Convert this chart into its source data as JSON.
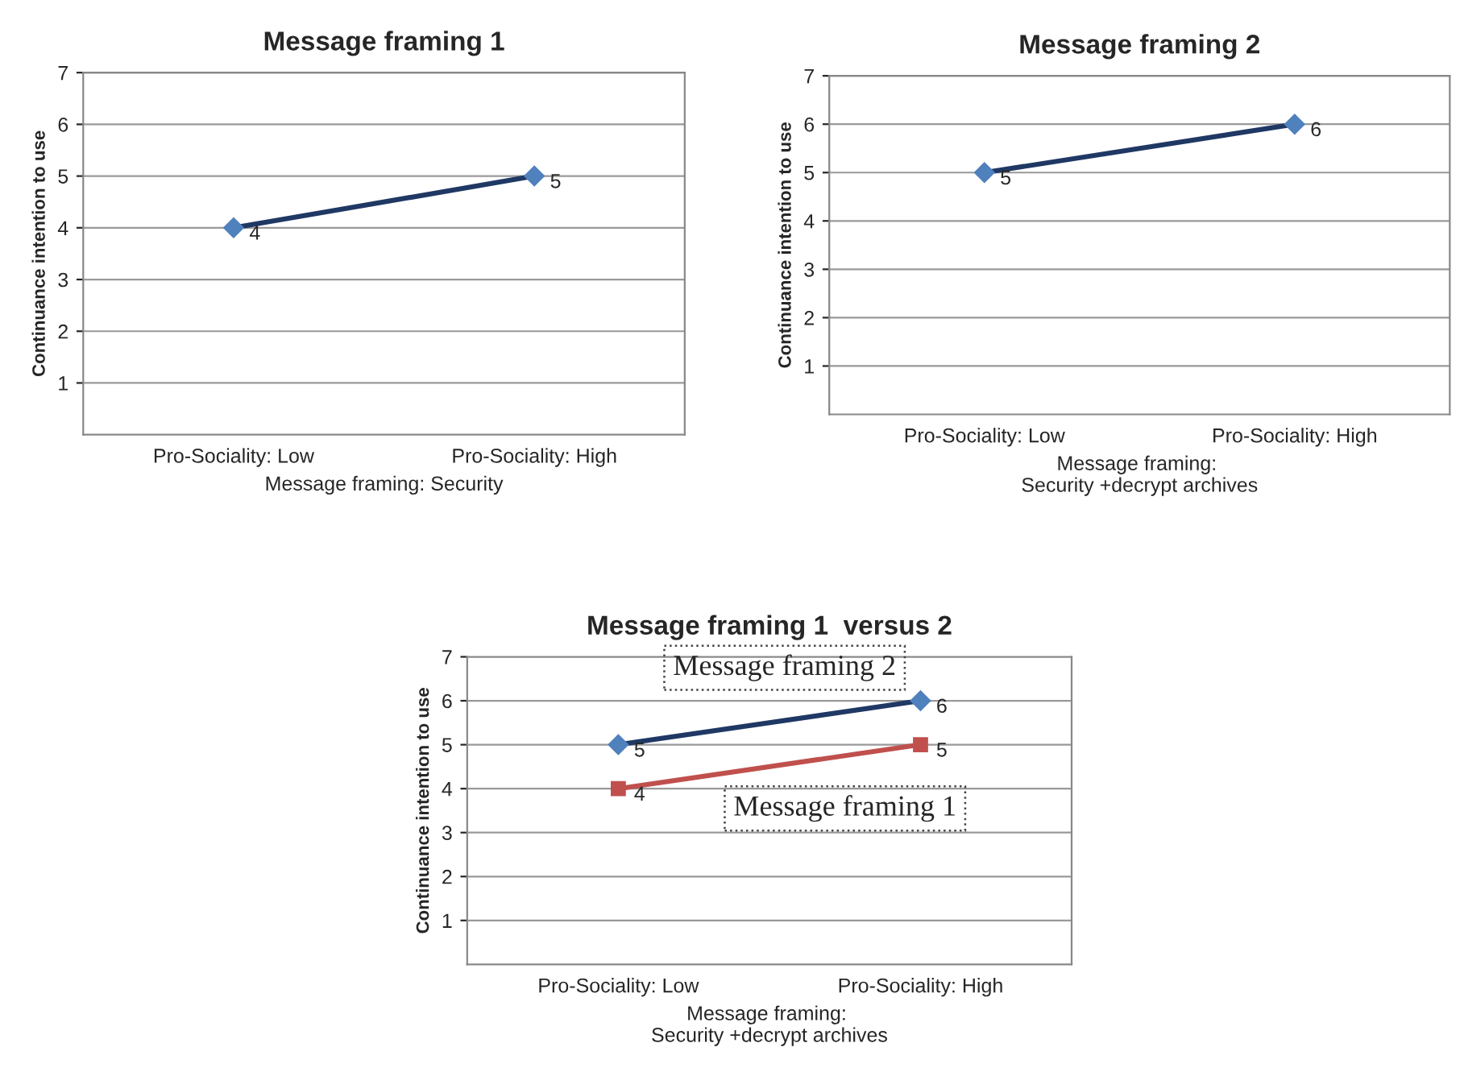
{
  "chart_data": [
    {
      "type": "line",
      "title": "Message framing 1",
      "ylabel": "Continuance intention to use",
      "xlabel": "Message framing: Security",
      "categories": [
        "Pro-Sociality: Low",
        "Pro-Sociality: High"
      ],
      "series": [
        {
          "color": "#1f3864",
          "values": [
            4,
            5
          ]
        }
      ],
      "ylim": [
        0,
        7
      ],
      "yticks": [
        1,
        2,
        3,
        4,
        5,
        6,
        7
      ],
      "grid": "y",
      "marker": "diamond",
      "data_labels": true
    },
    {
      "type": "line",
      "title": "Message framing 2",
      "ylabel": "Continuance intention to use",
      "xlabel": "Message framing: \nSecurity +decrypt archives",
      "categories": [
        "Pro-Sociality: Low",
        "Pro-Sociality: High"
      ],
      "series": [
        {
          "color": "#1f3864",
          "values": [
            5,
            6
          ]
        }
      ],
      "ylim": [
        0,
        7
      ],
      "yticks": [
        1,
        2,
        3,
        4,
        5,
        6,
        7
      ],
      "grid": "y",
      "marker": "diamond",
      "data_labels": true
    },
    {
      "type": "line",
      "title": "Message framing 1  versus 2",
      "ylabel": "Continuance intention to use",
      "xlabel": "Message framing: \nSecurity +decrypt archives",
      "categories": [
        "Pro-Sociality: Low",
        "Pro-Sociality: High"
      ],
      "series": [
        {
          "name": "Message framing 2",
          "color": "#1f3864",
          "marker": "diamond",
          "values": [
            5,
            6
          ]
        },
        {
          "name": "Message framing 1",
          "color": "#c0504d",
          "marker": "square",
          "values": [
            4,
            5
          ]
        }
      ],
      "ylim": [
        0,
        7
      ],
      "yticks": [
        1,
        2,
        3,
        4,
        5,
        6,
        7
      ],
      "grid": "y",
      "data_labels": true
    }
  ]
}
